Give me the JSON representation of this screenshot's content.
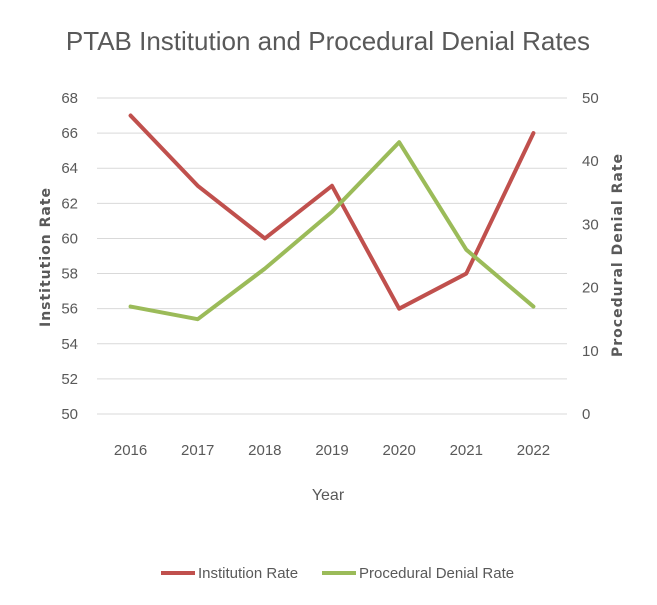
{
  "chart_data": {
    "type": "line",
    "title": "PTAB Institution and Procedural Denial Rates",
    "xlabel": "Year",
    "ylabel_left": "Institution Rate",
    "ylabel_right": "Procedural Denial Rate",
    "categories": [
      "2016",
      "2017",
      "2018",
      "2019",
      "2020",
      "2021",
      "2022"
    ],
    "y_left": {
      "min": 50,
      "max": 68,
      "ticks": [
        50,
        52,
        54,
        56,
        58,
        60,
        62,
        64,
        66,
        68
      ]
    },
    "y_right": {
      "min": 0,
      "max": 50,
      "ticks": [
        0,
        10,
        20,
        30,
        40,
        50
      ]
    },
    "grid": true,
    "legend_position": "bottom",
    "series": [
      {
        "name": "Institution Rate",
        "axis": "left",
        "color": "#c0504d",
        "values": [
          67,
          63,
          60,
          63,
          56,
          58,
          66
        ]
      },
      {
        "name": "Procedural Denial Rate",
        "axis": "right",
        "color": "#9bbb59",
        "values": [
          17,
          15,
          23,
          32,
          43,
          26,
          17
        ]
      }
    ]
  }
}
